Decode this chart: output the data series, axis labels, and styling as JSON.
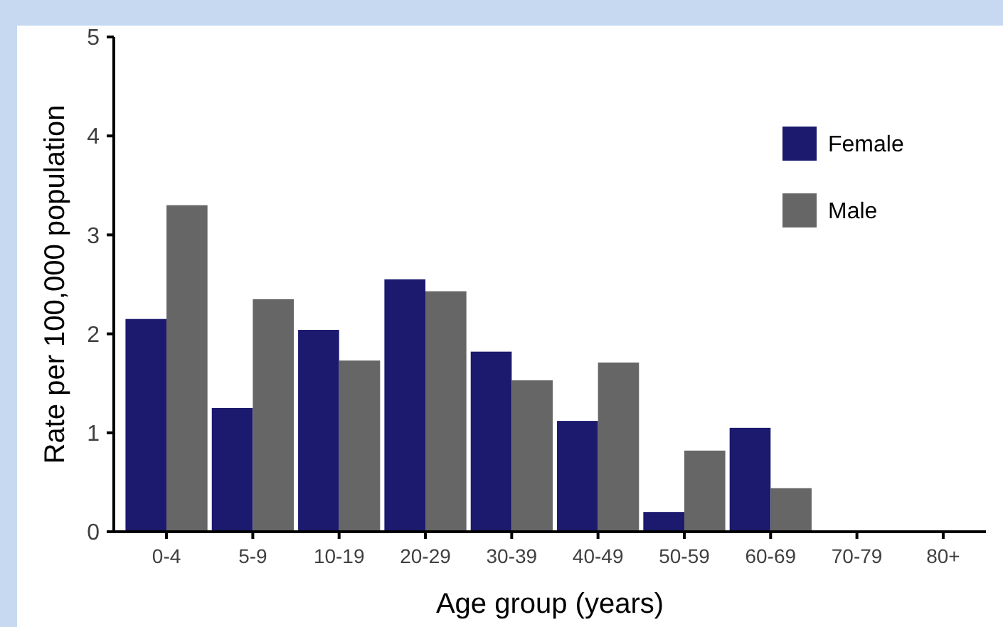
{
  "chart_data": {
    "type": "bar",
    "xlabel": "Age group (years)",
    "ylabel": "Rate per 100,000 population",
    "categories": [
      "0-4",
      "5-9",
      "10-19",
      "20-29",
      "30-39",
      "40-49",
      "50-59",
      "60-69",
      "70-79",
      "80+"
    ],
    "series": [
      {
        "name": "Female",
        "color": "#1b1a6e",
        "values": [
          2.15,
          1.25,
          2.04,
          2.55,
          1.82,
          1.12,
          0.2,
          1.05,
          0,
          0
        ]
      },
      {
        "name": "Male",
        "color": "#666666",
        "values": [
          3.3,
          2.35,
          1.73,
          2.43,
          1.53,
          1.71,
          0.82,
          0.44,
          0,
          0
        ]
      }
    ],
    "ylim": [
      0,
      5
    ],
    "yticks": [
      0,
      1,
      2,
      3,
      4,
      5
    ],
    "grid": false,
    "legend": "top right"
  }
}
